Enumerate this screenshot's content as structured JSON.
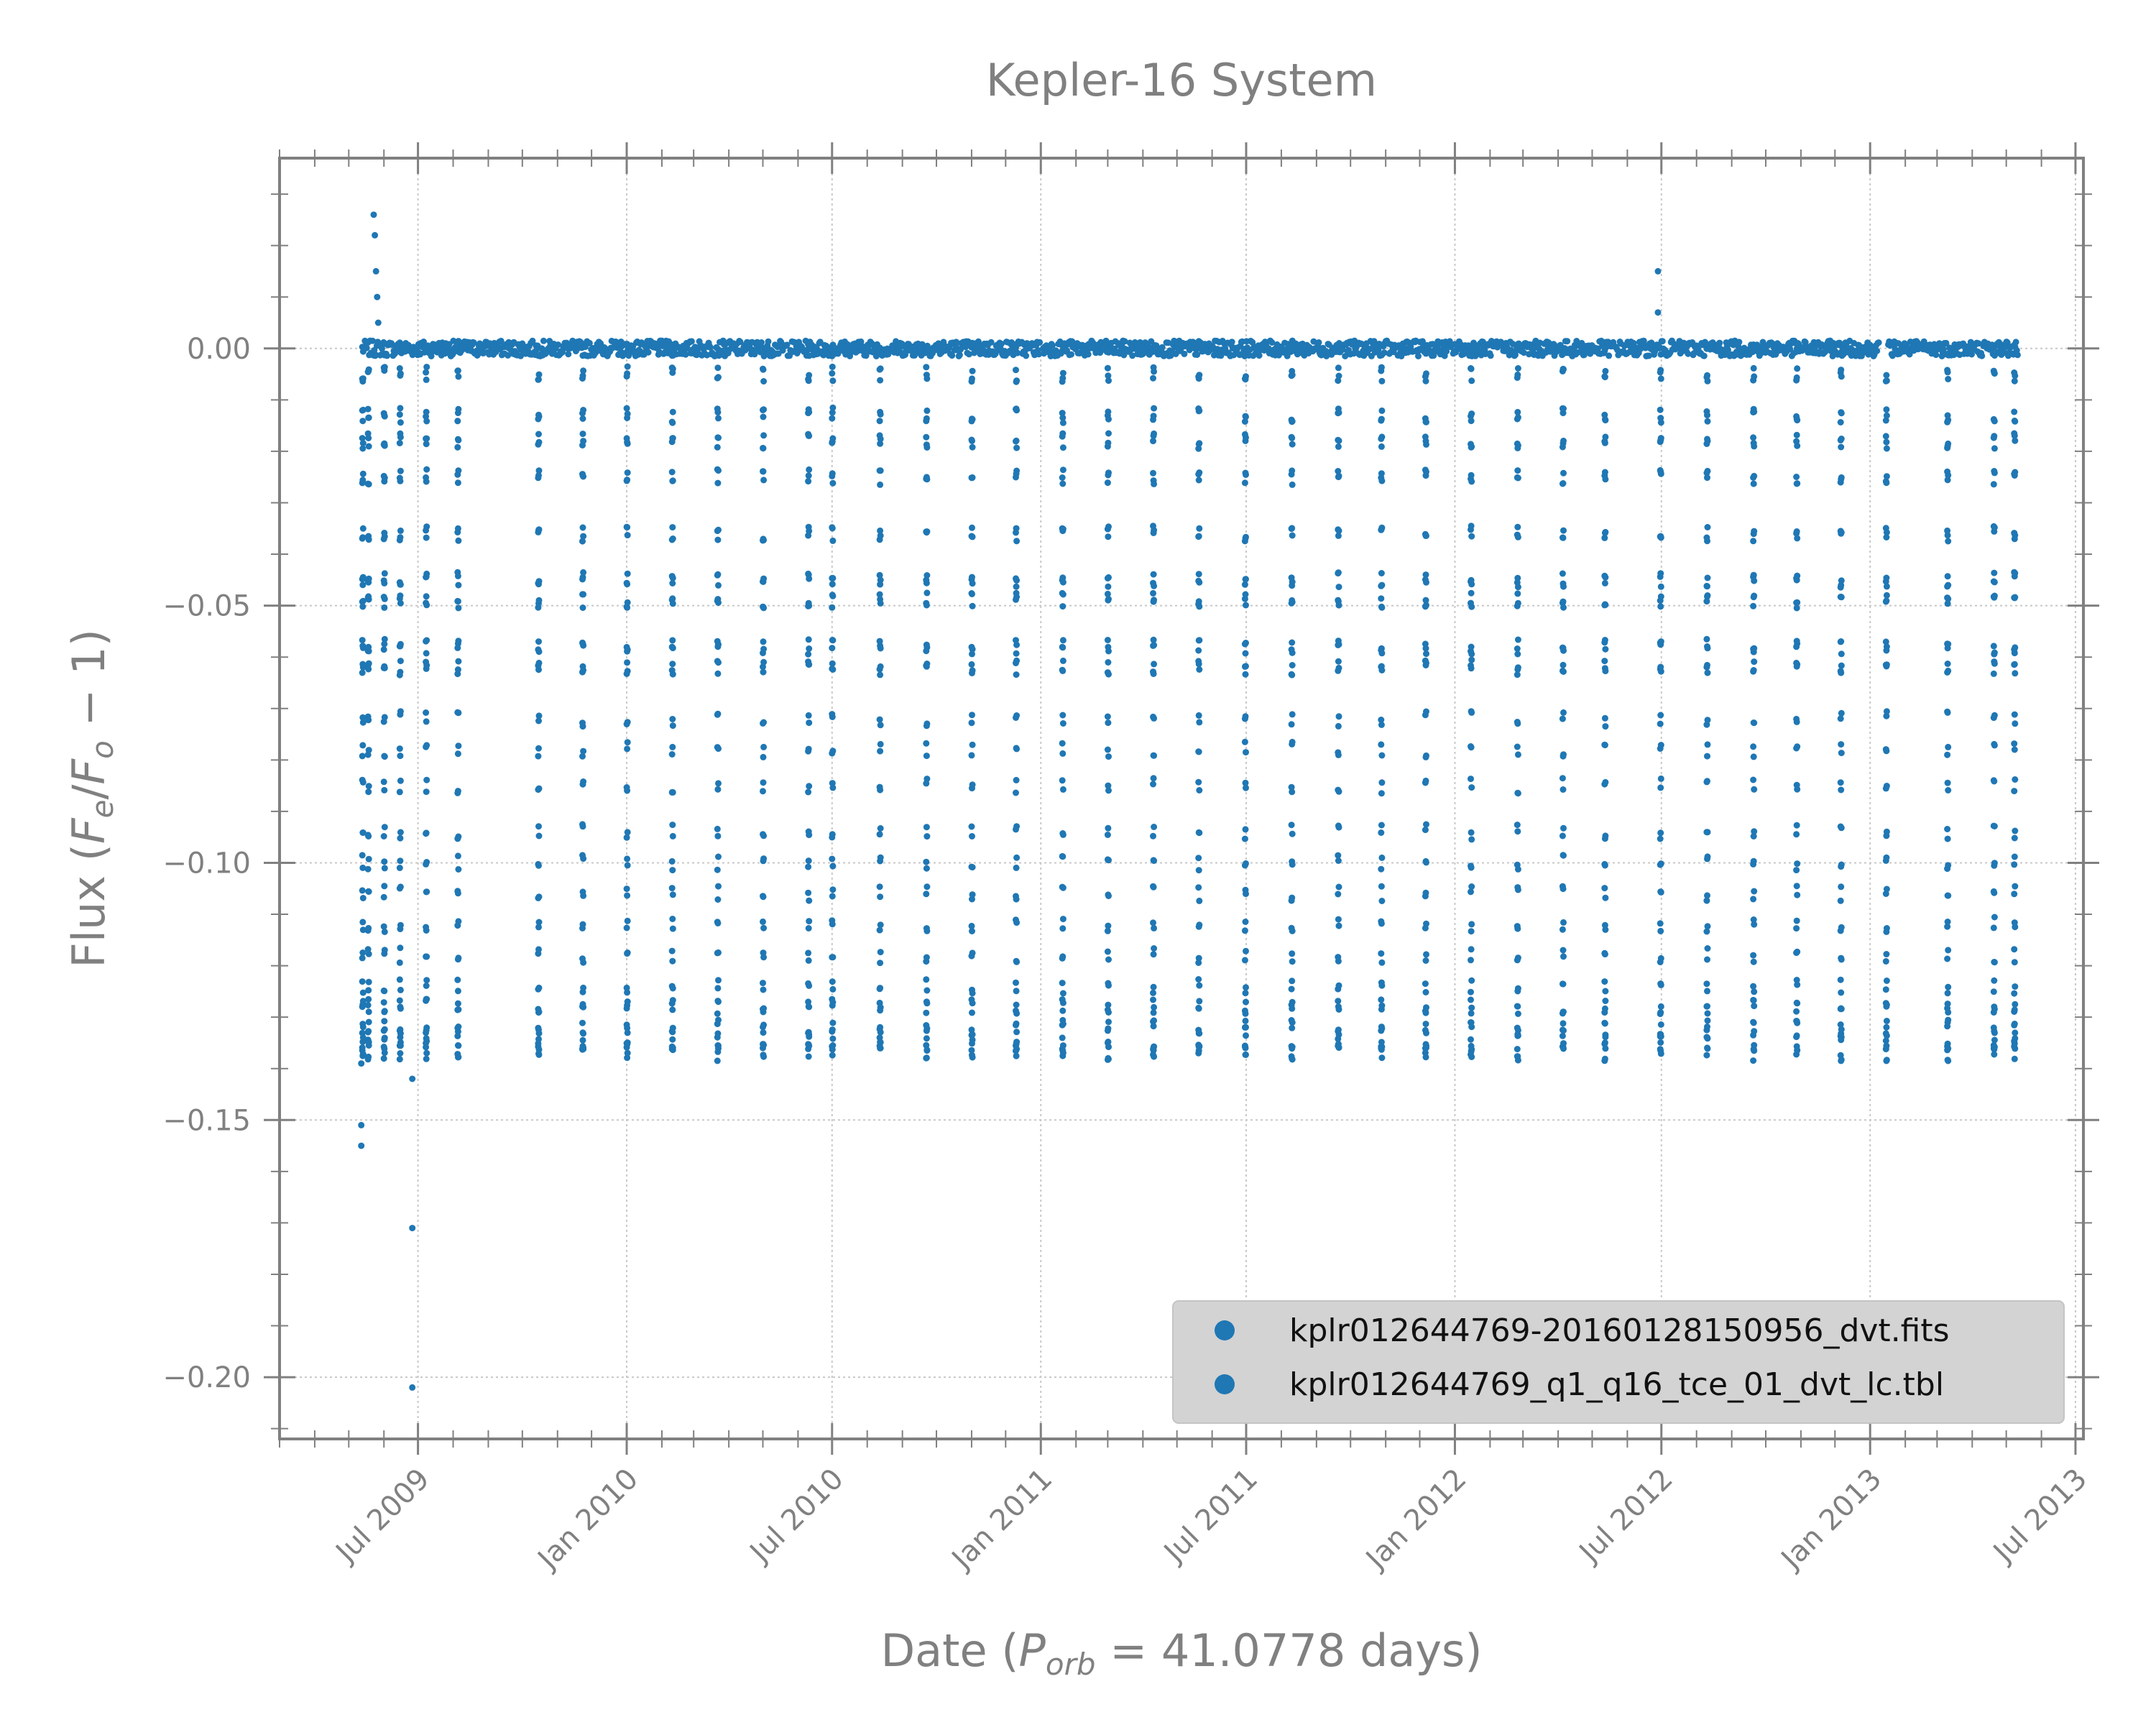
{
  "chart_data": {
    "type": "scatter",
    "title": "Kepler-16 System",
    "xlabel": {
      "prefix": "Date (",
      "symbol": "P",
      "subscript": "orb",
      "suffix": " = 41.0778 days)"
    },
    "ylabel": {
      "prefix": "Flux (",
      "f1": "F",
      "sub1": "e",
      "slash": "/",
      "f2": "F",
      "sub2": "o",
      "suffix": " − 1)"
    },
    "x_axis": {
      "type": "date",
      "range": [
        "2009-03-01",
        "2013-07-08"
      ],
      "ticks": [
        {
          "date": "2009-07-01",
          "label": "Jul 2009"
        },
        {
          "date": "2010-01-01",
          "label": "Jan 2010"
        },
        {
          "date": "2010-07-01",
          "label": "Jul 2010"
        },
        {
          "date": "2011-01-01",
          "label": "Jan 2011"
        },
        {
          "date": "2011-07-01",
          "label": "Jul 2011"
        },
        {
          "date": "2012-01-01",
          "label": "Jan 2012"
        },
        {
          "date": "2012-07-01",
          "label": "Jul 2012"
        },
        {
          "date": "2013-01-01",
          "label": "Jan 2013"
        },
        {
          "date": "2013-07-01",
          "label": "Jul 2013"
        }
      ]
    },
    "y_axis": {
      "range": [
        -0.212,
        0.037
      ],
      "ticks": [
        {
          "value": 0.0,
          "label": "0.00"
        },
        {
          "value": -0.05,
          "label": "−0.05"
        },
        {
          "value": -0.1,
          "label": "−0.10"
        },
        {
          "value": -0.15,
          "label": "−0.15"
        },
        {
          "value": -0.2,
          "label": "−0.20"
        }
      ]
    },
    "grid": true,
    "legend_position": "lower-right",
    "series": [
      {
        "name": "kplr012644769-20160128150956_dvt.fits",
        "color": "#1f77b4"
      },
      {
        "name": "kplr012644769_q1_q16_tce_01_dvt_lc.tbl",
        "color": "#1f77b4"
      }
    ],
    "baseline": {
      "flux": 0.0,
      "segments": [
        [
          "2009-05-13",
          "2010-12-31"
        ],
        [
          "2011-01-03",
          "2013-01-09"
        ],
        [
          "2013-01-17",
          "2013-05-11"
        ]
      ]
    },
    "transit_dates": [
      "2009-05-13",
      "2009-05-18",
      "2009-06-01",
      "2009-06-15",
      "2009-07-08",
      "2009-08-05",
      "2009-10-15",
      "2009-11-23",
      "2010-01-01",
      "2010-02-10",
      "2010-03-22",
      "2010-05-01",
      "2010-06-10",
      "2010-07-01",
      "2010-08-12",
      "2010-09-22",
      "2010-11-01",
      "2010-12-10",
      "2011-01-20",
      "2011-03-01",
      "2011-04-10",
      "2011-05-20",
      "2011-06-30",
      "2011-08-10",
      "2011-09-20",
      "2011-10-28",
      "2011-12-06",
      "2012-01-15",
      "2012-02-25",
      "2012-04-05",
      "2012-05-12",
      "2012-06-30",
      "2012-08-10",
      "2012-09-20",
      "2012-10-28",
      "2012-12-06",
      "2013-01-15",
      "2013-03-10",
      "2013-04-20",
      "2013-05-08"
    ],
    "transit_depths": [
      -0.005,
      -0.013,
      -0.018,
      -0.025,
      -0.036,
      -0.045,
      -0.049,
      -0.058,
      -0.062,
      -0.072,
      -0.078,
      -0.085,
      -0.094,
      -0.1,
      -0.106,
      -0.112,
      -0.118,
      -0.124,
      -0.128,
      -0.132,
      -0.135,
      -0.137
    ],
    "outliers": [
      {
        "date": "2009-05-23",
        "flux": 0.026
      },
      {
        "date": "2009-05-24",
        "flux": 0.022
      },
      {
        "date": "2009-05-25",
        "flux": 0.015
      },
      {
        "date": "2009-05-26",
        "flux": 0.01
      },
      {
        "date": "2009-05-27",
        "flux": 0.005
      },
      {
        "date": "2009-05-12",
        "flux": -0.155
      },
      {
        "date": "2009-05-12",
        "flux": -0.151
      },
      {
        "date": "2009-05-12",
        "flux": -0.139
      },
      {
        "date": "2009-06-26",
        "flux": -0.142
      },
      {
        "date": "2009-06-26",
        "flux": -0.171
      },
      {
        "date": "2009-06-26",
        "flux": -0.202
      },
      {
        "date": "2012-06-28",
        "flux": 0.015
      },
      {
        "date": "2012-06-28",
        "flux": 0.007
      }
    ]
  }
}
